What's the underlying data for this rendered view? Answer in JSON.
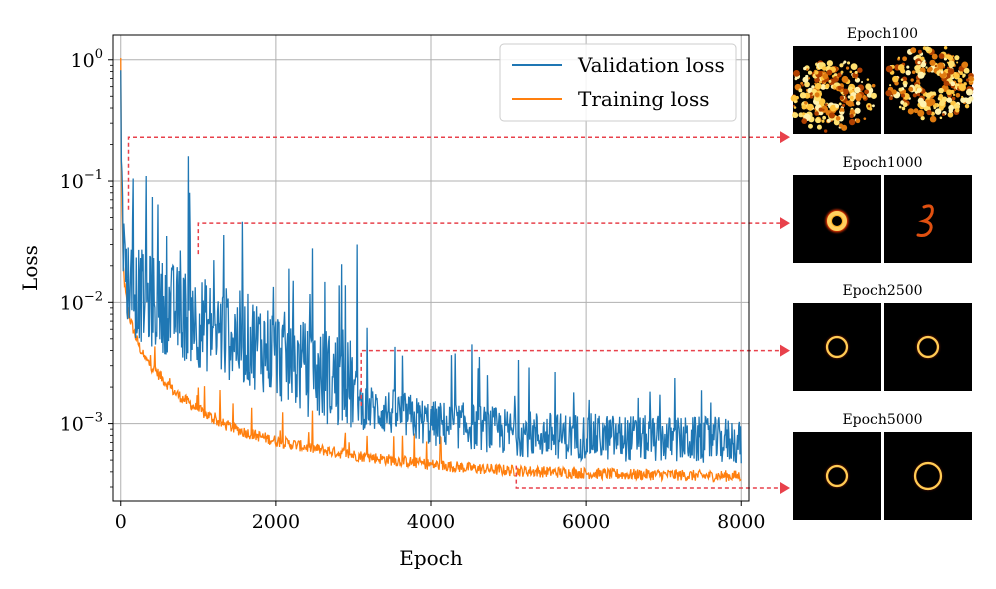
{
  "chart_data": {
    "type": "line",
    "xlabel": "Epoch",
    "ylabel": "Loss",
    "yscale": "log",
    "xlim": [
      -100,
      8100
    ],
    "ylim": [
      0.00023,
      1.6
    ],
    "grid": true,
    "legend_placement": "upper right",
    "xticks": [
      0,
      2000,
      4000,
      6000,
      8000
    ],
    "xtick_labels": [
      "0",
      "2000",
      "4000",
      "6000",
      "8000"
    ],
    "ytick_exponents": [
      0,
      -1,
      -2,
      -3
    ],
    "ytick_base": "10",
    "series": [
      {
        "name": "Validation loss",
        "color": "#1f77b4",
        "x": [
          0,
          20,
          50,
          100,
          200,
          300,
          500,
          700,
          900,
          1000,
          1200,
          1500,
          1800,
          2000,
          2200,
          2500,
          2800,
          3000,
          3100,
          3300,
          3600,
          4000,
          4500,
          5000,
          5500,
          6000,
          6500,
          7000,
          7500,
          8000
        ],
        "values": [
          1.0,
          0.03,
          0.02,
          0.015,
          0.012,
          0.011,
          0.0095,
          0.0085,
          0.0075,
          0.007,
          0.006,
          0.0052,
          0.0045,
          0.0038,
          0.0032,
          0.0026,
          0.0022,
          0.002,
          0.0014,
          0.0013,
          0.0012,
          0.001,
          0.00095,
          0.00085,
          0.0008,
          0.00078,
          0.00076,
          0.00074,
          0.00073,
          0.00072
        ],
        "spikes": [
          {
            "x": 100,
            "y": 0.35
          },
          {
            "x": 330,
            "y": 0.11
          },
          {
            "x": 870,
            "y": 0.16
          },
          {
            "x": 1300,
            "y": 0.11
          },
          {
            "x": 1740,
            "y": 0.1
          },
          {
            "x": 2180,
            "y": 0.18
          },
          {
            "x": 3050,
            "y": 0.03
          },
          {
            "x": 3700,
            "y": 0.02
          },
          {
            "x": 4530,
            "y": 0.0045
          }
        ]
      },
      {
        "name": "Training loss",
        "color": "#ff7f0e",
        "x": [
          0,
          10,
          30,
          60,
          100,
          200,
          300,
          500,
          700,
          1000,
          1300,
          1600,
          2000,
          2500,
          3000,
          3500,
          4000,
          4500,
          5000,
          5500,
          6000,
          6500,
          7000,
          7500,
          8000
        ],
        "values": [
          1.0,
          0.1,
          0.02,
          0.012,
          0.008,
          0.005,
          0.0035,
          0.0025,
          0.0018,
          0.0013,
          0.001,
          0.00085,
          0.00072,
          0.00062,
          0.00055,
          0.0005,
          0.00046,
          0.00043,
          0.00041,
          0.0004,
          0.00039,
          0.00038,
          0.00038,
          0.00037,
          0.00037
        ]
      }
    ],
    "annotations": [
      {
        "epoch": 100,
        "start_loss": 0.058,
        "label": "Epoch100"
      },
      {
        "epoch": 1000,
        "start_loss": 0.025,
        "label": "Epoch1000"
      },
      {
        "epoch": 3100,
        "start_loss": 0.0014,
        "label": "Epoch2500"
      },
      {
        "epoch": 5100,
        "start_loss": 0.00045,
        "label": "Epoch5000"
      }
    ]
  },
  "panels": [
    {
      "title": "Epoch100",
      "style": "noisy"
    },
    {
      "title": "Epoch1000",
      "style": "blob"
    },
    {
      "title": "Epoch2500",
      "style": "ring-small"
    },
    {
      "title": "Epoch5000",
      "style": "ring-large"
    }
  ],
  "colors": {
    "validation": "#1f77b4",
    "training": "#ff7f0e",
    "connector": "#e8414b",
    "grid": "#b0b0b0"
  }
}
